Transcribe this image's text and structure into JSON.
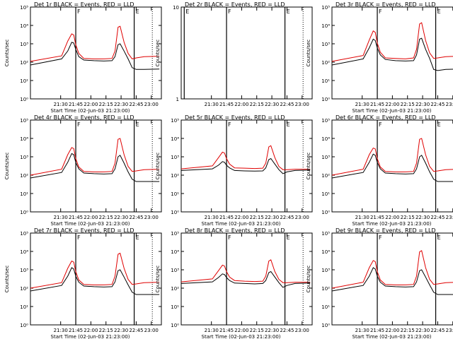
{
  "figure": {
    "xtick_labels": [
      "21:30",
      "21:45",
      "22:00",
      "22:15",
      "22:30",
      "22:45",
      "23:00"
    ],
    "xlabel": "Start Time (02-Jun-03 21:23:00)",
    "ylabel": "Counts/sec",
    "series_colors": {
      "events": "#000000",
      "lld": "#e00000"
    }
  },
  "chart_data": [
    {
      "type": "line",
      "title": "Det 1r BLACK = Events, RED = LLD",
      "xlabel": "Start Time (02-Jun-03 21:23:00)",
      "ylabel": "Counts/sec",
      "log_y": true,
      "ylim": [
        1,
        100000
      ],
      "xlim_minutes": [
        -23,
        107
      ],
      "ytick_labels": [
        "10⁰",
        "10¹",
        "10²",
        "10³",
        "10⁴",
        "10⁵"
      ],
      "xtick_labels": [
        "21:30",
        "21:45",
        "22:00",
        "22:15",
        "22:30",
        "22:45",
        "23:00"
      ],
      "flags": [
        {
          "t_min": 22,
          "label": "F"
        },
        {
          "t_min": 80,
          "label": "E"
        }
      ],
      "dotted_line": true,
      "series": [
        {
          "key": "events",
          "x": [
            -23,
            8,
            14,
            18,
            20,
            22,
            25,
            30,
            40,
            50,
            58,
            61,
            64,
            66,
            70,
            74,
            78,
            82,
            90,
            105
          ],
          "y": [
            70,
            150,
            400,
            1200,
            1100,
            500,
            200,
            130,
            120,
            115,
            120,
            200,
            900,
            1000,
            400,
            150,
            50,
            40,
            40,
            42
          ]
        },
        {
          "key": "lld",
          "x": [
            -23,
            8,
            14,
            18,
            20,
            22,
            25,
            30,
            40,
            50,
            58,
            61,
            64,
            66,
            70,
            74,
            78,
            82,
            90,
            105
          ],
          "y": [
            110,
            220,
            1400,
            3500,
            3000,
            900,
            300,
            160,
            150,
            150,
            160,
            400,
            8000,
            9000,
            1200,
            300,
            150,
            170,
            200,
            210
          ]
        }
      ]
    },
    {
      "type": "line",
      "title": "Det 2r BLACK = Events, RED = LLD",
      "xlabel": "",
      "ylabel": "Counts/sec",
      "log_y": true,
      "ylim": [
        1,
        10
      ],
      "xlim_minutes": [
        -23,
        107
      ],
      "ytick_labels": [
        "1",
        "10"
      ],
      "xtick_labels": [
        "21:30",
        "21:45",
        "22:00",
        "22:15",
        "22:30",
        "22:45",
        "23:00"
      ],
      "flags": [
        {
          "t_min": -20,
          "label": "E"
        },
        {
          "t_min": 22,
          "label": "F"
        },
        {
          "t_min": 80,
          "label": "E"
        }
      ],
      "dotted_line": true,
      "series": []
    },
    {
      "type": "line",
      "title": "Det 3r BLACK = Events, RED = LLD",
      "xlabel": "Start Time (02-Jun-03 21:23:00)",
      "ylabel": "Counts/sec",
      "log_y": true,
      "ylim": [
        1,
        100000
      ],
      "xlim_minutes": [
        -23,
        107
      ],
      "ytick_labels": [
        "10⁰",
        "10¹",
        "10²",
        "10³",
        "10⁴",
        "10⁵"
      ],
      "xtick_labels": [
        "21:30",
        "21:45",
        "22:00",
        "22:15",
        "22:30",
        "22:45",
        "23:00"
      ],
      "flags": [
        {
          "t_min": 22,
          "label": "F"
        },
        {
          "t_min": 80,
          "label": "E"
        }
      ],
      "dotted_line": true,
      "series": [
        {
          "key": "events",
          "x": [
            -23,
            8,
            14,
            18,
            20,
            22,
            25,
            30,
            40,
            50,
            58,
            61,
            64,
            66,
            70,
            74,
            78,
            82,
            90,
            105
          ],
          "y": [
            70,
            150,
            600,
            1800,
            1500,
            600,
            250,
            140,
            120,
            115,
            120,
            250,
            1800,
            2000,
            500,
            160,
            40,
            35,
            40,
            42
          ]
        },
        {
          "key": "lld",
          "x": [
            -23,
            8,
            14,
            18,
            20,
            22,
            25,
            30,
            40,
            50,
            58,
            61,
            64,
            66,
            70,
            74,
            78,
            82,
            90,
            105
          ],
          "y": [
            110,
            230,
            1600,
            5000,
            4200,
            1100,
            350,
            170,
            160,
            150,
            170,
            500,
            12000,
            14000,
            1500,
            320,
            160,
            170,
            200,
            210
          ]
        }
      ]
    },
    {
      "type": "line",
      "title": "Det 4r BLACK = Events, RED = LLD",
      "xlabel": "Start Time (02-Jun-03 21:23:00)",
      "ylabel": "Counts/sec",
      "log_y": true,
      "ylim": [
        1,
        100000
      ],
      "xlim_minutes": [
        -23,
        107
      ],
      "ytick_labels": [
        "10⁰",
        "10¹",
        "10²",
        "10³",
        "10⁴",
        "10⁵"
      ],
      "xtick_labels": [
        "21:30",
        "21:45",
        "22:00",
        "22:15",
        "22:30",
        "22:45",
        "23:00"
      ],
      "flags": [
        {
          "t_min": 22,
          "label": "F"
        },
        {
          "t_min": 80,
          "label": "E"
        }
      ],
      "dotted_line": true,
      "series": [
        {
          "key": "events",
          "x": [
            -23,
            8,
            14,
            18,
            20,
            22,
            25,
            30,
            40,
            50,
            58,
            61,
            64,
            66,
            70,
            74,
            78,
            82,
            90,
            105
          ],
          "y": [
            70,
            140,
            500,
            1500,
            1300,
            500,
            220,
            130,
            120,
            115,
            120,
            220,
            1000,
            1200,
            450,
            150,
            60,
            45,
            45,
            45
          ]
        },
        {
          "key": "lld",
          "x": [
            -23,
            8,
            14,
            18,
            20,
            22,
            25,
            30,
            40,
            50,
            58,
            61,
            64,
            66,
            70,
            74,
            78,
            82,
            90,
            105
          ],
          "y": [
            100,
            210,
            1300,
            3200,
            2800,
            800,
            280,
            160,
            150,
            150,
            160,
            450,
            9000,
            10000,
            1300,
            300,
            160,
            170,
            200,
            210
          ]
        }
      ]
    },
    {
      "type": "line",
      "title": "Det 5r BLACK = Events, RED = LLD",
      "xlabel": "Start Time (02-Jun-03 21:23:00)",
      "ylabel": "Counts/sec",
      "log_y": true,
      "ylim": [
        1,
        100000
      ],
      "xlim_minutes": [
        -23,
        107
      ],
      "ytick_labels": [
        "10⁰",
        "10¹",
        "10²",
        "10³",
        "10⁴",
        "10⁵"
      ],
      "xtick_labels": [
        "21:30",
        "21:45",
        "22:00",
        "22:15",
        "22:30",
        "22:45",
        "23:00"
      ],
      "flags": [
        {
          "t_min": 22,
          "label": "F"
        },
        {
          "t_min": 80,
          "label": "E"
        }
      ],
      "dotted_line": true,
      "series": [
        {
          "key": "events",
          "x": [
            -23,
            8,
            14,
            18,
            20,
            22,
            25,
            30,
            40,
            50,
            58,
            61,
            64,
            66,
            70,
            74,
            78,
            82,
            90,
            105
          ],
          "y": [
            180,
            220,
            350,
            550,
            500,
            350,
            250,
            180,
            170,
            165,
            170,
            250,
            700,
            800,
            400,
            200,
            120,
            150,
            180,
            190
          ]
        },
        {
          "key": "lld",
          "x": [
            -23,
            8,
            14,
            18,
            20,
            22,
            25,
            30,
            40,
            50,
            58,
            61,
            64,
            66,
            70,
            74,
            78,
            82,
            90,
            105
          ],
          "y": [
            220,
            320,
            900,
            1800,
            1600,
            800,
            400,
            250,
            240,
            230,
            240,
            450,
            3500,
            4000,
            900,
            300,
            200,
            200,
            210,
            210
          ]
        }
      ]
    },
    {
      "type": "line",
      "title": "Det 6r BLACK = Events, RED = LLD",
      "xlabel": "Start Time (02-Jun-03 21:23:00)",
      "ylabel": "Counts/sec",
      "log_y": true,
      "ylim": [
        1,
        100000
      ],
      "xlim_minutes": [
        -23,
        107
      ],
      "ytick_labels": [
        "10⁰",
        "10¹",
        "10²",
        "10³",
        "10⁴",
        "10⁵"
      ],
      "xtick_labels": [
        "21:30",
        "21:45",
        "22:00",
        "22:15",
        "22:30",
        "22:45",
        "23:00"
      ],
      "flags": [
        {
          "t_min": 22,
          "label": "F"
        },
        {
          "t_min": 80,
          "label": "E"
        }
      ],
      "dotted_line": true,
      "series": [
        {
          "key": "events",
          "x": [
            -23,
            8,
            14,
            18,
            20,
            22,
            25,
            30,
            40,
            50,
            58,
            61,
            64,
            66,
            70,
            74,
            78,
            82,
            90,
            105
          ],
          "y": [
            70,
            140,
            500,
            1400,
            1200,
            500,
            220,
            130,
            120,
            115,
            120,
            220,
            1000,
            1200,
            450,
            150,
            60,
            45,
            45,
            45
          ]
        },
        {
          "key": "lld",
          "x": [
            -23,
            8,
            14,
            18,
            20,
            22,
            25,
            30,
            40,
            50,
            58,
            61,
            64,
            66,
            70,
            74,
            78,
            82,
            90,
            105
          ],
          "y": [
            100,
            210,
            1300,
            3000,
            2700,
            800,
            280,
            160,
            150,
            150,
            160,
            450,
            9000,
            10000,
            1300,
            300,
            160,
            170,
            200,
            210
          ]
        }
      ]
    },
    {
      "type": "line",
      "title": "Det 7r BLACK = Events, RED = LLD",
      "xlabel": "Start Time (02-Jun-03 21:23:00)",
      "ylabel": "Counts/sec",
      "log_y": true,
      "ylim": [
        1,
        100000
      ],
      "xlim_minutes": [
        -23,
        107
      ],
      "ytick_labels": [
        "10⁰",
        "10¹",
        "10²",
        "10³",
        "10⁴",
        "10⁵"
      ],
      "xtick_labels": [
        "21:30",
        "21:45",
        "22:00",
        "22:15",
        "22:30",
        "22:45",
        "23:00"
      ],
      "flags": [
        {
          "t_min": 22,
          "label": "F"
        },
        {
          "t_min": 80,
          "label": "E"
        }
      ],
      "dotted_line": true,
      "series": [
        {
          "key": "events",
          "x": [
            -23,
            8,
            14,
            18,
            20,
            22,
            25,
            30,
            40,
            50,
            58,
            61,
            64,
            66,
            70,
            74,
            78,
            82,
            90,
            105
          ],
          "y": [
            70,
            140,
            450,
            1300,
            1100,
            450,
            210,
            130,
            120,
            115,
            120,
            220,
            900,
            1000,
            400,
            150,
            60,
            45,
            45,
            45
          ]
        },
        {
          "key": "lld",
          "x": [
            -23,
            8,
            14,
            18,
            20,
            22,
            25,
            30,
            40,
            50,
            58,
            61,
            64,
            66,
            70,
            74,
            78,
            82,
            90,
            105
          ],
          "y": [
            100,
            200,
            1200,
            3000,
            2600,
            800,
            280,
            160,
            150,
            150,
            160,
            450,
            7000,
            8000,
            1200,
            300,
            160,
            170,
            200,
            210
          ]
        }
      ]
    },
    {
      "type": "line",
      "title": "Det 8r BLACK = Events, RED = LLD",
      "xlabel": "Start Time (02-Jun-03 21:23:00)",
      "ylabel": "Counts/sec",
      "log_y": true,
      "ylim": [
        1,
        100000
      ],
      "xlim_minutes": [
        -23,
        107
      ],
      "ytick_labels": [
        "10⁰",
        "10¹",
        "10²",
        "10³",
        "10⁴",
        "10⁵"
      ],
      "xtick_labels": [
        "21:30",
        "21:45",
        "22:00",
        "22:15",
        "22:30",
        "22:45",
        "23:00"
      ],
      "flags": [
        {
          "t_min": 22,
          "label": "F"
        },
        {
          "t_min": 80,
          "label": "E"
        }
      ],
      "dotted_line": true,
      "series": [
        {
          "key": "events",
          "x": [
            -23,
            8,
            14,
            18,
            20,
            22,
            25,
            30,
            40,
            50,
            58,
            61,
            64,
            66,
            70,
            74,
            78,
            82,
            90,
            105
          ],
          "y": [
            180,
            220,
            380,
            600,
            550,
            380,
            260,
            190,
            180,
            170,
            180,
            260,
            700,
            800,
            400,
            200,
            110,
            140,
            180,
            190
          ]
        },
        {
          "key": "lld",
          "x": [
            -23,
            8,
            14,
            18,
            20,
            22,
            25,
            30,
            40,
            50,
            58,
            61,
            64,
            66,
            70,
            74,
            78,
            82,
            90,
            105
          ],
          "y": [
            220,
            320,
            900,
            1800,
            1600,
            800,
            400,
            260,
            240,
            230,
            240,
            450,
            3000,
            3500,
            800,
            300,
            200,
            200,
            210,
            210
          ]
        }
      ]
    },
    {
      "type": "line",
      "title": "Det 9r BLACK = Events, RED = LLD",
      "xlabel": "Start Time (02-Jun-03 21:23:00)",
      "ylabel": "Counts/sec",
      "log_y": true,
      "ylim": [
        1,
        100000
      ],
      "xlim_minutes": [
        -23,
        107
      ],
      "ytick_labels": [
        "10⁰",
        "10¹",
        "10²",
        "10³",
        "10⁴",
        "10⁵"
      ],
      "xtick_labels": [
        "21:30",
        "21:45",
        "22:00",
        "22:15",
        "22:30",
        "22:45",
        "23:00"
      ],
      "flags": [
        {
          "t_min": 22,
          "label": "F"
        },
        {
          "t_min": 80,
          "label": "E"
        }
      ],
      "dotted_line": true,
      "series": [
        {
          "key": "events",
          "x": [
            -23,
            8,
            14,
            18,
            20,
            22,
            25,
            30,
            40,
            50,
            58,
            61,
            64,
            66,
            70,
            74,
            78,
            82,
            90,
            105
          ],
          "y": [
            70,
            140,
            450,
            1300,
            1100,
            450,
            210,
            130,
            120,
            115,
            120,
            220,
            900,
            1000,
            400,
            150,
            60,
            45,
            45,
            45
          ]
        },
        {
          "key": "lld",
          "x": [
            -23,
            8,
            14,
            18,
            20,
            22,
            25,
            30,
            40,
            50,
            58,
            61,
            64,
            66,
            70,
            74,
            78,
            82,
            90,
            105
          ],
          "y": [
            100,
            210,
            1300,
            3200,
            2800,
            800,
            280,
            160,
            150,
            150,
            160,
            450,
            9500,
            11000,
            1300,
            300,
            160,
            170,
            200,
            210
          ]
        }
      ]
    }
  ]
}
